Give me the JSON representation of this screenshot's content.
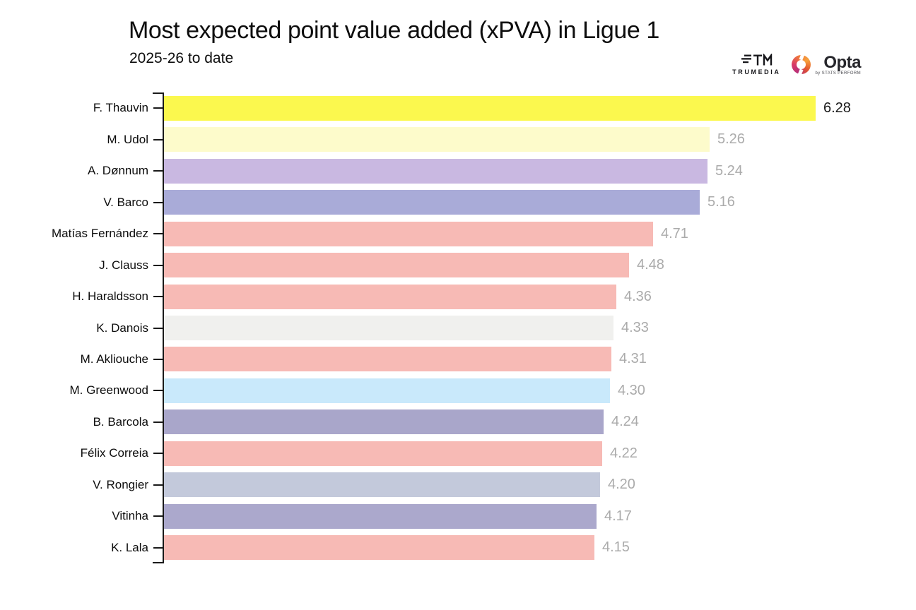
{
  "header": {
    "title": "Most expected point value added (xPVA) in Ligue 1",
    "subtitle": "2025-26 to date"
  },
  "branding": {
    "trumedia_label": "TRUMEDIA",
    "opta_label": "Opta",
    "opta_sublabel": "by STATS PERFORM"
  },
  "colors": {
    "background": "#ffffff",
    "axis": "#1a1a1a",
    "value_label_gray": "#ABABAB",
    "value_label_leader": "#1a1a1a"
  },
  "chart_data": {
    "type": "bar",
    "orientation": "horizontal",
    "title": "Most expected point value added (xPVA) in Ligue 1",
    "subtitle": "2025-26 to date",
    "xlabel": "",
    "ylabel": "",
    "xlim": [
      0,
      6.28
    ],
    "grid": false,
    "legend": false,
    "categories": [
      "F. Thauvin",
      "M. Udol",
      "A. Dønnum",
      "V. Barco",
      "Matías Fernández",
      "J. Clauss",
      "H. Haraldsson",
      "K. Danois",
      "M. Akliouche",
      "M. Greenwood",
      "B. Barcola",
      "Félix Correia",
      "V. Rongier",
      "Vitinha",
      "K. Lala"
    ],
    "values": [
      6.28,
      5.26,
      5.24,
      5.16,
      4.71,
      4.48,
      4.36,
      4.33,
      4.31,
      4.3,
      4.24,
      4.22,
      4.2,
      4.17,
      4.15
    ],
    "bar_colors": [
      "#FBF84E",
      "#FDFBCB",
      "#C9B8E1",
      "#A9ABD8",
      "#F7BAB5",
      "#F7BAB5",
      "#F7BAB5",
      "#F0F0EE",
      "#F7BAB5",
      "#C9E9FB",
      "#A9A6CA",
      "#F7BAB5",
      "#C3C9DB",
      "#ABA8CC",
      "#F7BAB5"
    ],
    "value_label_colors": [
      "#1a1a1a",
      "#ABABAB",
      "#ABABAB",
      "#ABABAB",
      "#ABABAB",
      "#ABABAB",
      "#ABABAB",
      "#ABABAB",
      "#ABABAB",
      "#ABABAB",
      "#ABABAB",
      "#ABABAB",
      "#ABABAB",
      "#ABABAB",
      "#ABABAB"
    ]
  }
}
